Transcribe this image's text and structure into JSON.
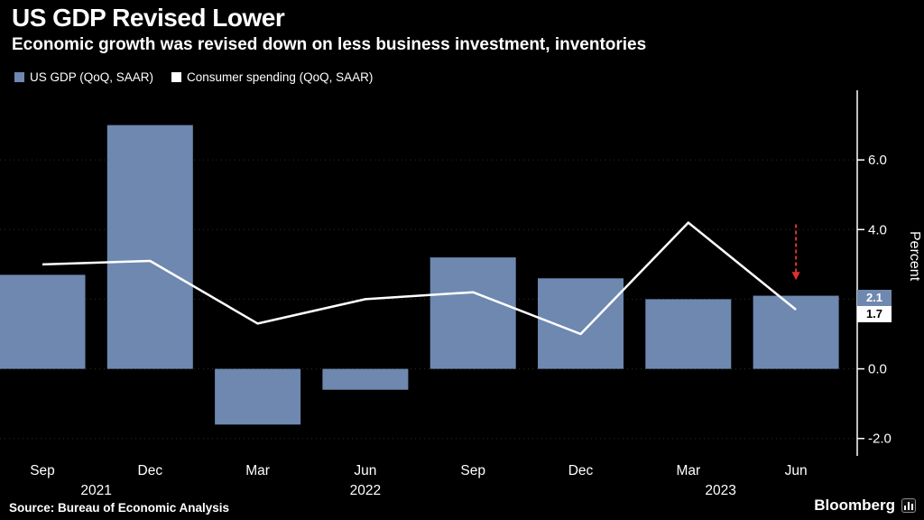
{
  "header": {
    "title": "US GDP Revised Lower",
    "subtitle": "Economic growth was revised down on less business investment, inventories"
  },
  "legend": [
    {
      "label": "US GDP (QoQ, SAAR)",
      "color": "#6e88b0"
    },
    {
      "label": "Consumer spending (QoQ, SAAR)",
      "color": "#ffffff"
    }
  ],
  "chart_data": {
    "type": "bar+line",
    "categories": [
      "Sep",
      "Dec",
      "Mar",
      "Jun",
      "Sep",
      "Dec",
      "Mar",
      "Jun"
    ],
    "year_labels": [
      {
        "text": "2021",
        "position": 0.5
      },
      {
        "text": "2022",
        "position": 3.0
      },
      {
        "text": "2023",
        "position": 6.3
      }
    ],
    "series": [
      {
        "name": "US GDP (QoQ, SAAR)",
        "type": "bar",
        "color": "#6e88b0",
        "values": [
          2.7,
          7.0,
          -1.6,
          -0.6,
          3.2,
          2.6,
          2.0,
          2.1
        ]
      },
      {
        "name": "Consumer spending (QoQ, SAAR)",
        "type": "line",
        "color": "#ffffff",
        "values": [
          3.0,
          3.1,
          1.3,
          2.0,
          2.2,
          1.0,
          4.2,
          1.7
        ]
      }
    ],
    "ylabel": "Percent",
    "ylim": [
      -2.5,
      8.0
    ],
    "yticks": [
      6.0,
      4.0,
      2.0,
      0.0,
      -2.0
    ],
    "ytick_labels": [
      "6.0",
      "4.0",
      "",
      "0.0",
      "-2.0"
    ],
    "grid": "dotted-horizontal",
    "legend_position": "top-left",
    "annotations": {
      "gdp_label": "2.1",
      "consumer_label": "1.7",
      "arrow": {
        "category_index": 7,
        "from_value": 4.15,
        "to_value": 2.55,
        "color": "#e03131"
      }
    }
  },
  "footer": {
    "source": "Source: Bureau of Economic Analysis",
    "brand": "Bloomberg"
  }
}
